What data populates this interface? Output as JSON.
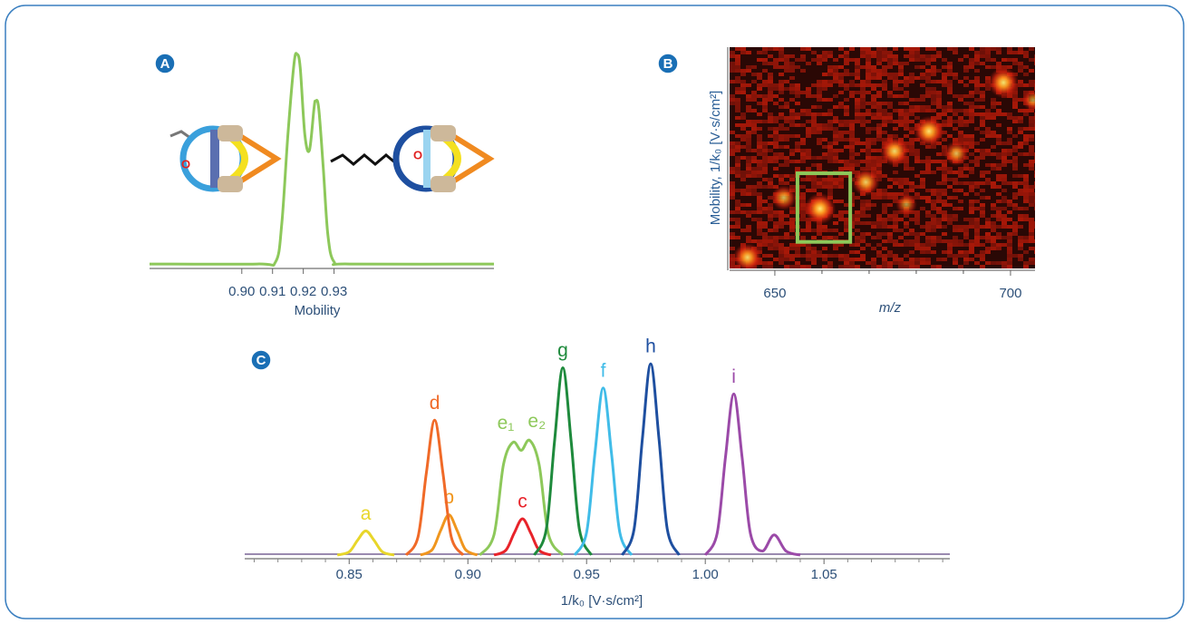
{
  "chart_data": [
    {
      "type": "line",
      "panel_label": "A",
      "xlabel": "Mobility",
      "molecule_label": "O",
      "xlim": [
        0.87,
        0.982
      ],
      "ylim": [
        0,
        1
      ],
      "xticks": [
        {
          "value": 0.9,
          "label": "0.90"
        },
        0.91,
        0.92,
        0.93
      ],
      "series": [
        {
          "color": "#8dc85a",
          "x": [
            0.87,
            0.905,
            0.911,
            0.913,
            0.915,
            0.917,
            0.918,
            0.919,
            0.9205,
            0.922,
            0.9235,
            0.924,
            0.925,
            0.9265,
            0.928,
            0.93,
            0.935,
            0.982
          ],
          "values": [
            0.02,
            0.02,
            0.03,
            0.2,
            0.6,
            0.92,
            0.96,
            0.9,
            0.6,
            0.53,
            0.72,
            0.75,
            0.72,
            0.45,
            0.15,
            0.03,
            0.02,
            0.02
          ]
        }
      ]
    },
    {
      "type": "scatter",
      "panel_label": "B",
      "xlabel": "m/z",
      "ylabel": "Mobility, 1/k₀ [V·s/cm²]",
      "xlim": [
        640.4,
        705.2
      ],
      "ylim": [
        0,
        1
      ],
      "xticks": [
        650,
        700
      ],
      "xminor": [
        660,
        670,
        680,
        690
      ],
      "x": [
        698.5,
        682.7,
        675.4,
        688.5,
        669.3,
        659.6,
        651.9,
        644.2,
        704.8,
        677.9
      ],
      "values": [
        0.84,
        0.62,
        0.53,
        0.52,
        0.39,
        0.27,
        0.32,
        0.05,
        0.76,
        0.29
      ],
      "intensity": [
        0.9,
        0.9,
        0.85,
        0.6,
        0.75,
        0.95,
        0.6,
        0.8,
        0.4,
        0.4
      ],
      "highlight": {
        "color": "#8dc85a",
        "xlim": [
          654.8,
          666.0
        ],
        "ylim": [
          0.12,
          0.43
        ]
      }
    },
    {
      "type": "line",
      "panel_label": "C",
      "xlabel": "1/k₀ [V·s/cm²]",
      "xlim": [
        0.806,
        1.103
      ],
      "ylim": [
        0,
        1
      ],
      "xticks": [
        0.85,
        {
          "value": 0.9,
          "label": "0.90"
        },
        0.95,
        {
          "value": 1.0,
          "label": "1.00"
        },
        1.05
      ],
      "xminor": [
        0.81,
        0.82,
        0.83,
        0.84,
        0.86,
        0.87,
        0.88,
        0.89,
        0.91,
        0.92,
        0.93,
        0.94,
        0.96,
        0.97,
        0.98,
        0.99,
        1.01,
        1.02,
        1.03,
        1.04,
        1.06,
        1.07,
        1.08,
        1.09,
        1.1
      ],
      "series": [
        {
          "name": "a",
          "color": "#e8d62a",
          "x": [
            0.845,
            0.85,
            0.8535,
            0.857,
            0.8605,
            0.864,
            0.869
          ],
          "values": [
            0,
            0.016,
            0.073,
            0.12,
            0.073,
            0.016,
            0
          ]
        },
        {
          "name": "b",
          "color": "#f0961e",
          "x": [
            0.88,
            0.885,
            0.8885,
            0.892,
            0.8955,
            0.899,
            0.904
          ],
          "values": [
            0,
            0.027,
            0.121,
            0.2,
            0.121,
            0.027,
            0
          ]
        },
        {
          "name": "c",
          "color": "#e8232a",
          "x": [
            0.911,
            0.916,
            0.9195,
            0.923,
            0.9265,
            0.93,
            0.935
          ],
          "values": [
            0,
            0.024,
            0.109,
            0.18,
            0.109,
            0.024,
            0
          ]
        },
        {
          "name": "d",
          "color": "#f06a28",
          "x": [
            0.874,
            0.879,
            0.8825,
            0.886,
            0.8895,
            0.893,
            0.898
          ],
          "values": [
            0,
            0.09,
            0.407,
            0.67,
            0.407,
            0.09,
            0
          ]
        },
        {
          "labels": [
            "e₁",
            "e₂"
          ],
          "color": "#8dc85a",
          "x": [
            0.905,
            0.911,
            0.915,
            0.919,
            0.9225,
            0.926,
            0.93,
            0.934,
            0.94
          ],
          "values": [
            0,
            0.1,
            0.45,
            0.56,
            0.52,
            0.57,
            0.45,
            0.1,
            0
          ]
        },
        {
          "name": "g",
          "color": "#1e8a3c",
          "x": [
            0.928,
            0.933,
            0.9365,
            0.94,
            0.9435,
            0.947,
            0.952
          ],
          "values": [
            0,
            0.126,
            0.565,
            0.93,
            0.565,
            0.126,
            0
          ]
        },
        {
          "name": "f",
          "color": "#40bce8",
          "x": [
            0.945,
            0.95,
            0.9535,
            0.957,
            0.9605,
            0.964,
            0.969
          ],
          "values": [
            0,
            0.112,
            0.504,
            0.83,
            0.504,
            0.112,
            0
          ]
        },
        {
          "name": "h",
          "color": "#1e4fa0",
          "x": [
            0.965,
            0.97,
            0.9735,
            0.977,
            0.9805,
            0.984,
            0.989
          ],
          "values": [
            0,
            0.128,
            0.577,
            0.95,
            0.577,
            0.128,
            0
          ]
        },
        {
          "name": "i",
          "color": "#9b4aa8",
          "x": [
            1.0,
            1.005,
            1.0085,
            1.012,
            1.0155,
            1.019,
            1.024,
            1.029,
            1.034,
            1.04
          ],
          "values": [
            0,
            0.108,
            0.486,
            0.8,
            0.486,
            0.108,
            0.02,
            0.1,
            0.02,
            0
          ]
        }
      ]
    }
  ]
}
